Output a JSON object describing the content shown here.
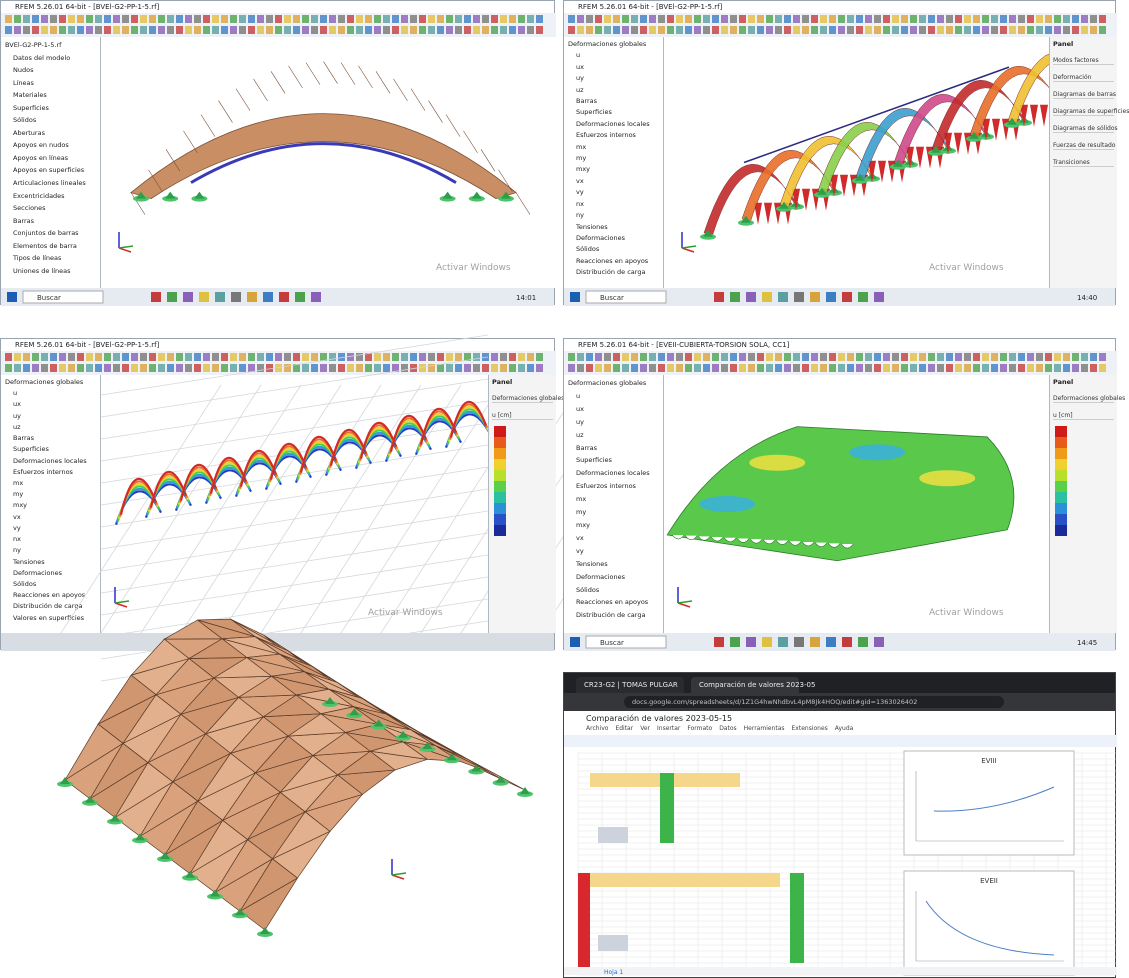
{
  "windows": [
    {
      "title": "RFEM 5.26.01 64-bit - [BVEl-G2-PP-1-5.rf]",
      "tree": [
        "BVEl-G2-PP-1-5.rf",
        "Datos del modelo",
        "Nudos",
        "Líneas",
        "Materiales",
        "Superficies",
        "Sólidos",
        "Aberturas",
        "Apoyos en nudos",
        "Apoyos en líneas",
        "Apoyos en superficies",
        "Articulaciones lineales",
        "Excentricidades",
        "Secciones",
        "Barras",
        "Conjuntos de barras",
        "Elementos de barra",
        "Tipos de líneas",
        "Uniones de líneas"
      ],
      "watermark": "Activar Windows",
      "search": "Buscar",
      "clock": "14:01"
    },
    {
      "title": "RFEM 5.26.01 64-bit - [BVEl-G2-PP-1-5.rf]",
      "tree": [
        "Deformaciones globales",
        "u",
        "ux",
        "uy",
        "uz",
        "Barras",
        "Superficies",
        "Deformaciones locales",
        "Esfuerzos internos",
        "mx",
        "my",
        "mxy",
        "vx",
        "vy",
        "nx",
        "ny",
        "Tensiones",
        "Deformaciones",
        "Sólidos",
        "Reacciones en apoyos",
        "Distribución de carga"
      ],
      "panel": {
        "title": "Panel",
        "items": [
          "Modos factores",
          "Deformación",
          "Diagramas de barras",
          "Diagramas de superficies",
          "Diagramas de sólidos",
          "Fuerzas de resultado",
          "Transiciones"
        ]
      },
      "watermark": "Activar Windows",
      "search": "Buscar",
      "clock": "14:40"
    },
    {
      "title": "RFEM 5.26.01 64-bit - [BVEl-G2-PP-1-5.rf]",
      "tree": [
        "Deformaciones globales",
        "u",
        "ux",
        "uy",
        "uz",
        "Barras",
        "Superficies",
        "Deformaciones locales",
        "Esfuerzos internos",
        "mx",
        "my",
        "mxy",
        "vx",
        "vy",
        "nx",
        "ny",
        "Tensiones",
        "Deformaciones",
        "Sólidos",
        "Reacciones en apoyos",
        "Distribución de carga",
        "Valores en superficies"
      ],
      "panel": {
        "title": "Panel",
        "items": [
          "Deformaciones globales",
          "u [cm]"
        ]
      },
      "watermark": "Activar Windows"
    },
    {
      "title": "RFEM 5.26.01 64-bit - [EVEII-CUBIERTA-TORSION SOLA, CC1]",
      "tree": [
        "Deformaciones globales",
        "u",
        "ux",
        "uy",
        "uz",
        "Barras",
        "Superficies",
        "Deformaciones locales",
        "Esfuerzos internos",
        "mx",
        "my",
        "mxy",
        "vx",
        "vy",
        "Tensiones",
        "Deformaciones",
        "Sólidos",
        "Reacciones en apoyos",
        "Distribución de carga"
      ],
      "panel": {
        "title": "Panel",
        "items": [
          "Deformaciones globales",
          "u [cm]"
        ]
      },
      "watermark": "Activar Windows",
      "search": "Buscar",
      "clock": "14:45"
    }
  ],
  "browser": {
    "tabs": [
      "CR23-G2 | TOMAS PULGAR",
      "Comparación de valores 2023-05"
    ],
    "url": "docs.google.com/spreadsheets/d/1Z1G4hwNhdbvL4pM8Jk4HOQ/edit#gid=1363026402",
    "doc_title": "Comparación de valores 2023-05-15",
    "menu": [
      "Archivo",
      "Editar",
      "Ver",
      "Insertar",
      "Formato",
      "Datos",
      "Herramientas",
      "Extensiones",
      "Ayuda"
    ],
    "sheet_tab": "Hoja 1",
    "charts": [
      "EVIII",
      "EVEII"
    ]
  }
}
